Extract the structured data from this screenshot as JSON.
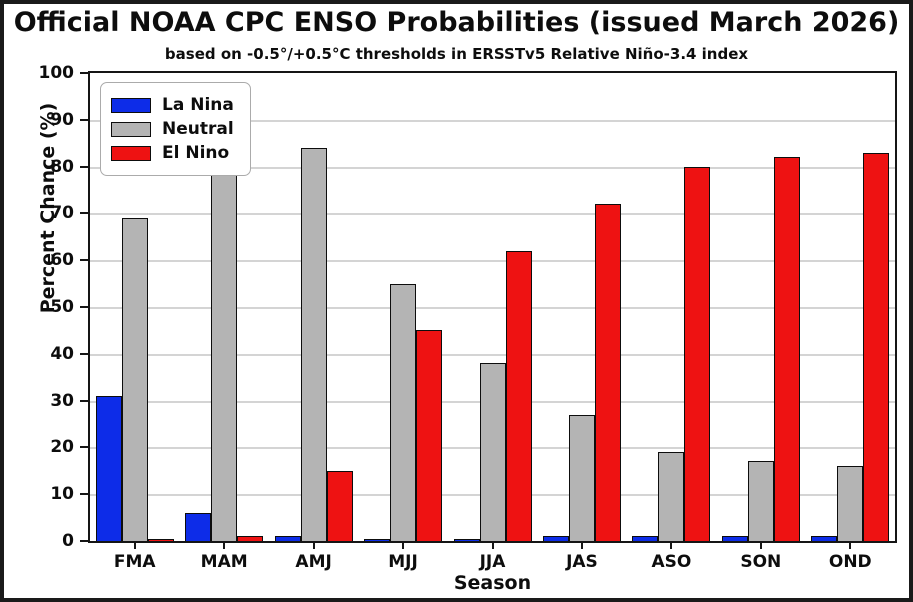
{
  "title": "Official NOAA CPC ENSO Probabilities (issued March 2026)",
  "subtitle": "based on -0.5°/+0.5°C thresholds in ERSSTv5 Relative Niño-3.4 index",
  "colors": {
    "la_nina": "#0d2ce8",
    "neutral": "#b4b4b4",
    "el_nino": "#ee1212",
    "gridline": "#d4d4d4",
    "axis": "#151515"
  },
  "chart_data": {
    "type": "bar",
    "title": "Official NOAA CPC ENSO Probabilities (issued March 2026)",
    "subtitle": "based on -0.5°/+0.5°C thresholds in ERSSTv5 Relative Niño-3.4 index",
    "categories": [
      "FMA",
      "MAM",
      "AMJ",
      "MJJ",
      "JJA",
      "JAS",
      "ASO",
      "SON",
      "OND"
    ],
    "series": [
      {
        "name": "La Nina",
        "color": "#0d2ce8",
        "values": [
          31,
          6,
          1,
          0,
          0,
          1,
          1,
          1,
          1
        ]
      },
      {
        "name": "Neutral",
        "color": "#b4b4b4",
        "values": [
          69,
          93,
          84,
          55,
          38,
          27,
          19,
          17,
          16
        ]
      },
      {
        "name": "El Nino",
        "color": "#ee1212",
        "values": [
          0,
          1,
          15,
          45,
          62,
          72,
          80,
          82,
          83
        ]
      }
    ],
    "xlabel": "Season",
    "ylabel": "Percent Chance (%)",
    "ylim": [
      0,
      100
    ],
    "yticks": [
      0,
      10,
      20,
      30,
      40,
      50,
      60,
      70,
      80,
      90,
      100
    ],
    "grid": true,
    "legend_position": "upper left"
  }
}
